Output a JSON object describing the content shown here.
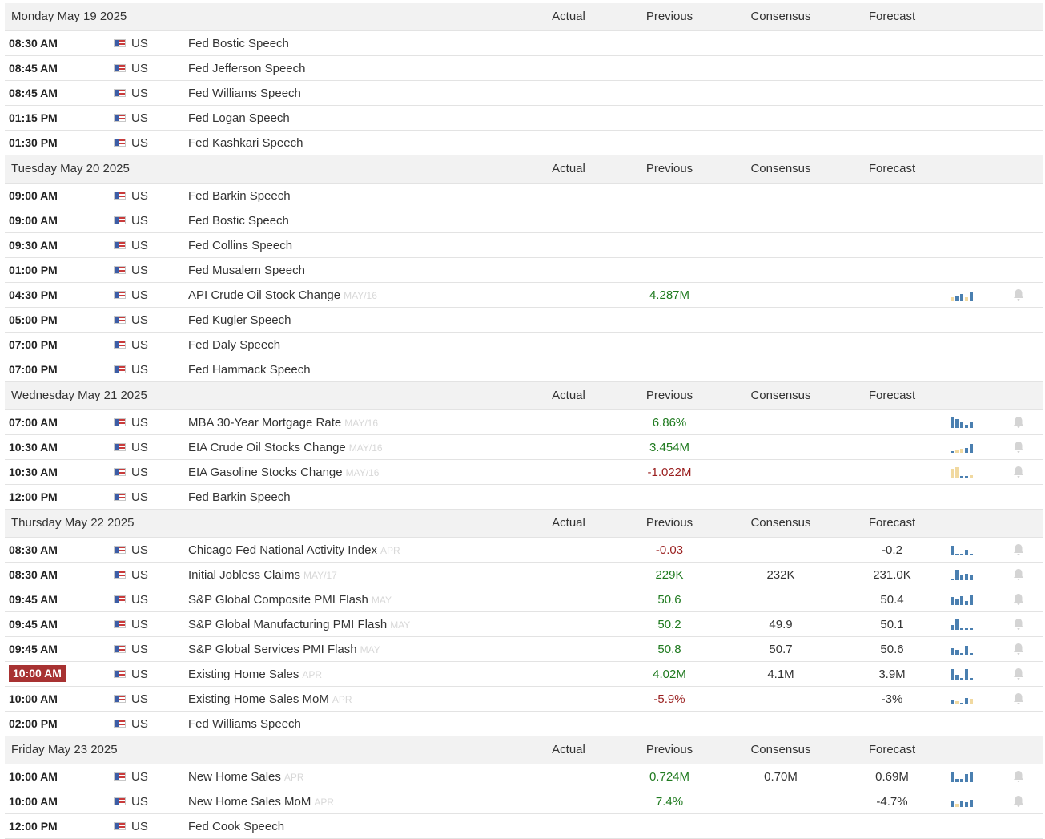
{
  "columns": {
    "actual": "Actual",
    "previous": "Previous",
    "consensus": "Consensus",
    "forecast": "Forecast"
  },
  "days": [
    {
      "title": "Monday May 19 2025",
      "rows": [
        {
          "time": "08:30 AM",
          "country": "US",
          "event": "Fed Bostic Speech"
        },
        {
          "time": "08:45 AM",
          "country": "US",
          "event": "Fed Jefferson Speech"
        },
        {
          "time": "08:45 AM",
          "country": "US",
          "event": "Fed Williams Speech"
        },
        {
          "time": "01:15 PM",
          "country": "US",
          "event": "Fed Logan Speech"
        },
        {
          "time": "01:30 PM",
          "country": "US",
          "event": "Fed Kashkari Speech"
        }
      ]
    },
    {
      "title": "Tuesday May 20 2025",
      "rows": [
        {
          "time": "09:00 AM",
          "country": "US",
          "event": "Fed Barkin Speech"
        },
        {
          "time": "09:00 AM",
          "country": "US",
          "event": "Fed Bostic Speech"
        },
        {
          "time": "09:30 AM",
          "country": "US",
          "event": "Fed Collins Speech"
        },
        {
          "time": "01:00 PM",
          "country": "US",
          "event": "Fed Musalem Speech"
        },
        {
          "time": "04:30 PM",
          "country": "US",
          "event": "API Crude Oil Stock Change",
          "ref": "MAY/16",
          "previous": "4.287M",
          "prev_dir": "pos",
          "spark": [
            {
              "v": 0.25,
              "c": "y"
            },
            {
              "v": 0.35,
              "c": "b"
            },
            {
              "v": 0.55,
              "c": "b"
            },
            {
              "v": 0.3,
              "c": "y"
            },
            {
              "v": 0.7,
              "c": "b"
            }
          ],
          "bell": true
        },
        {
          "time": "05:00 PM",
          "country": "US",
          "event": "Fed Kugler Speech"
        },
        {
          "time": "07:00 PM",
          "country": "US",
          "event": "Fed Daly Speech"
        },
        {
          "time": "07:00 PM",
          "country": "US",
          "event": "Fed Hammack Speech"
        }
      ]
    },
    {
      "title": "Wednesday May 21 2025",
      "rows": [
        {
          "time": "07:00 AM",
          "country": "US",
          "event": "MBA 30-Year Mortgage Rate",
          "ref": "MAY/16",
          "previous": "6.86%",
          "prev_dir": "pos",
          "spark": [
            {
              "v": 0.9,
              "c": "b"
            },
            {
              "v": 0.8,
              "c": "b"
            },
            {
              "v": 0.5,
              "c": "b"
            },
            {
              "v": 0.3,
              "c": "b"
            },
            {
              "v": 0.5,
              "c": "b"
            }
          ],
          "bell": true
        },
        {
          "time": "10:30 AM",
          "country": "US",
          "event": "EIA Crude Oil Stocks Change",
          "ref": "MAY/16",
          "previous": "3.454M",
          "prev_dir": "pos",
          "spark": [
            {
              "v": 0.12,
              "c": "b"
            },
            {
              "v": 0.25,
              "c": "y"
            },
            {
              "v": 0.35,
              "c": "y"
            },
            {
              "v": 0.45,
              "c": "b"
            },
            {
              "v": 0.8,
              "c": "b"
            }
          ],
          "bell": true
        },
        {
          "time": "10:30 AM",
          "country": "US",
          "event": "EIA Gasoline Stocks Change",
          "ref": "MAY/16",
          "previous": "-1.022M",
          "prev_dir": "neg",
          "spark": [
            {
              "v": 0.8,
              "c": "y"
            },
            {
              "v": 0.9,
              "c": "y"
            },
            {
              "v": 0.15,
              "c": "b"
            },
            {
              "v": 0.15,
              "c": "b"
            },
            {
              "v": 0.2,
              "c": "y"
            }
          ],
          "bell": true
        },
        {
          "time": "12:00 PM",
          "country": "US",
          "event": "Fed Barkin Speech"
        }
      ]
    },
    {
      "title": "Thursday May 22 2025",
      "rows": [
        {
          "time": "08:30 AM",
          "country": "US",
          "event": "Chicago Fed National Activity Index",
          "ref": "APR",
          "previous": "-0.03",
          "prev_dir": "neg",
          "forecast": "-0.2",
          "spark": [
            {
              "v": 0.85,
              "c": "b"
            },
            {
              "v": 0.15,
              "c": "b"
            },
            {
              "v": 0.15,
              "c": "b"
            },
            {
              "v": 0.5,
              "c": "b"
            },
            {
              "v": 0.15,
              "c": "b"
            }
          ],
          "bell": true
        },
        {
          "time": "08:30 AM",
          "country": "US",
          "event": "Initial Jobless Claims",
          "ref": "MAY/17",
          "previous": "229K",
          "prev_dir": "pos",
          "consensus": "232K",
          "forecast": "231.0K",
          "spark": [
            {
              "v": 0.15,
              "c": "b"
            },
            {
              "v": 0.9,
              "c": "b"
            },
            {
              "v": 0.45,
              "c": "b"
            },
            {
              "v": 0.6,
              "c": "b"
            },
            {
              "v": 0.45,
              "c": "b"
            }
          ],
          "bell": true
        },
        {
          "time": "09:45 AM",
          "country": "US",
          "event": "S&P Global Composite PMI Flash",
          "ref": "MAY",
          "previous": "50.6",
          "prev_dir": "pos",
          "forecast": "50.4",
          "spark": [
            {
              "v": 0.7,
              "c": "b"
            },
            {
              "v": 0.5,
              "c": "b"
            },
            {
              "v": 0.8,
              "c": "b"
            },
            {
              "v": 0.35,
              "c": "b"
            },
            {
              "v": 0.9,
              "c": "b"
            }
          ],
          "bell": true
        },
        {
          "time": "09:45 AM",
          "country": "US",
          "event": "S&P Global Manufacturing PMI Flash",
          "ref": "MAY",
          "previous": "50.2",
          "prev_dir": "pos",
          "consensus": "49.9",
          "forecast": "50.1",
          "spark": [
            {
              "v": 0.45,
              "c": "b"
            },
            {
              "v": 0.9,
              "c": "b"
            },
            {
              "v": 0.15,
              "c": "b"
            },
            {
              "v": 0.15,
              "c": "b"
            },
            {
              "v": 0.15,
              "c": "b"
            }
          ],
          "bell": true
        },
        {
          "time": "09:45 AM",
          "country": "US",
          "event": "S&P Global Services PMI Flash",
          "ref": "MAY",
          "previous": "50.8",
          "prev_dir": "pos",
          "consensus": "50.7",
          "forecast": "50.6",
          "spark": [
            {
              "v": 0.6,
              "c": "b"
            },
            {
              "v": 0.4,
              "c": "b"
            },
            {
              "v": 0.15,
              "c": "b"
            },
            {
              "v": 0.8,
              "c": "b"
            },
            {
              "v": 0.15,
              "c": "b"
            }
          ],
          "bell": true
        },
        {
          "time": "10:00 AM",
          "highlight": true,
          "country": "US",
          "event": "Existing Home Sales",
          "ref": "APR",
          "previous": "4.02M",
          "prev_dir": "pos",
          "consensus": "4.1M",
          "forecast": "3.9M",
          "spark": [
            {
              "v": 0.9,
              "c": "b"
            },
            {
              "v": 0.4,
              "c": "b"
            },
            {
              "v": 0.15,
              "c": "b"
            },
            {
              "v": 0.9,
              "c": "b"
            },
            {
              "v": 0.15,
              "c": "b"
            }
          ],
          "bell": true
        },
        {
          "time": "10:00 AM",
          "country": "US",
          "event": "Existing Home Sales MoM",
          "ref": "APR",
          "previous": "-5.9%",
          "prev_dir": "neg",
          "forecast": "-3%",
          "spark": [
            {
              "v": 0.35,
              "c": "b"
            },
            {
              "v": 0.25,
              "c": "y"
            },
            {
              "v": 0.15,
              "c": "b"
            },
            {
              "v": 0.6,
              "c": "b"
            },
            {
              "v": 0.5,
              "c": "y"
            }
          ],
          "bell": true
        },
        {
          "time": "02:00 PM",
          "country": "US",
          "event": "Fed Williams Speech"
        }
      ]
    },
    {
      "title": "Friday May 23 2025",
      "rows": [
        {
          "time": "10:00 AM",
          "country": "US",
          "event": "New Home Sales",
          "ref": "APR",
          "previous": "0.724M",
          "prev_dir": "pos",
          "consensus": "0.70M",
          "forecast": "0.69M",
          "spark": [
            {
              "v": 0.9,
              "c": "b"
            },
            {
              "v": 0.3,
              "c": "b"
            },
            {
              "v": 0.3,
              "c": "b"
            },
            {
              "v": 0.7,
              "c": "b"
            },
            {
              "v": 0.9,
              "c": "b"
            }
          ],
          "bell": true
        },
        {
          "time": "10:00 AM",
          "country": "US",
          "event": "New Home Sales MoM",
          "ref": "APR",
          "previous": "7.4%",
          "prev_dir": "pos",
          "forecast": "-4.7%",
          "spark": [
            {
              "v": 0.5,
              "c": "b"
            },
            {
              "v": 0.3,
              "c": "y"
            },
            {
              "v": 0.6,
              "c": "b"
            },
            {
              "v": 0.45,
              "c": "b"
            },
            {
              "v": 0.65,
              "c": "b"
            }
          ],
          "bell": true
        },
        {
          "time": "12:00 PM",
          "country": "US",
          "event": "Fed Cook Speech"
        }
      ]
    }
  ],
  "colors": {
    "positive": "#1f7a1f",
    "negative": "#9a1f1f",
    "bar_blue": "#4a7fb0",
    "bar_yellow": "#f1d9a0",
    "highlight_bg": "#a83232",
    "bell": "#d4d4d4"
  }
}
